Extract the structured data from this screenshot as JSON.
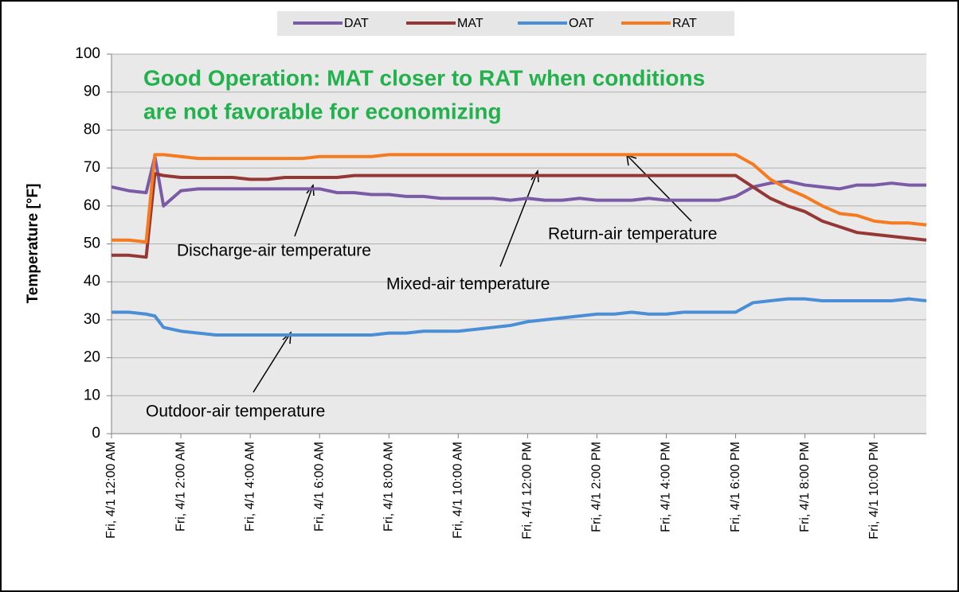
{
  "chart_data": {
    "type": "line",
    "title": [
      "Good Operation: MAT closer to RAT when conditions",
      "are not favorable for economizing"
    ],
    "y_label": "Temperature [°F]",
    "annotations": [
      "Discharge-air temperature",
      "Mixed-air temperature",
      "Return-air temperature",
      "Outdoor-air temperature"
    ],
    "x": [
      0,
      0.5,
      1,
      1.25,
      1.5,
      2,
      2.5,
      3,
      3.5,
      4,
      4.5,
      5,
      5.5,
      6,
      6.5,
      7,
      7.5,
      8,
      8.5,
      9,
      9.5,
      10,
      10.5,
      11,
      11.5,
      12,
      12.5,
      13,
      13.5,
      14,
      14.5,
      15,
      15.5,
      16,
      16.5,
      17,
      17.5,
      18,
      18.5,
      19,
      19.5,
      20,
      20.5,
      21,
      21.5,
      22,
      22.5,
      23,
      23.5
    ],
    "xlim": [
      0,
      23.5
    ],
    "xticks": [
      {
        "value": 0,
        "label": "Fri, 4/1 12:00 AM"
      },
      {
        "value": 2,
        "label": "Fri, 4/1 2:00 AM"
      },
      {
        "value": 4,
        "label": "Fri, 4/1 4:00 AM"
      },
      {
        "value": 6,
        "label": "Fri, 4/1 6:00 AM"
      },
      {
        "value": 8,
        "label": "Fri, 4/1 8:00 AM"
      },
      {
        "value": 10,
        "label": "Fri, 4/1 10:00 AM"
      },
      {
        "value": 12,
        "label": "Fri, 4/1 12:00 PM"
      },
      {
        "value": 14,
        "label": "Fri, 4/1 2:00 PM"
      },
      {
        "value": 16,
        "label": "Fri, 4/1 4:00 PM"
      },
      {
        "value": 18,
        "label": "Fri, 4/1 6:00 PM"
      },
      {
        "value": 20,
        "label": "Fri, 4/1 8:00 PM"
      },
      {
        "value": 22,
        "label": "Fri, 4/1 10:00 PM"
      }
    ],
    "ylim": [
      0,
      100
    ],
    "yticks": [
      0,
      10,
      20,
      30,
      40,
      50,
      60,
      70,
      80,
      90,
      100
    ],
    "grid": true,
    "legend": "top",
    "series": [
      {
        "name": "DAT",
        "color": "#7b5aa6",
        "values": [
          65,
          64,
          63.5,
          73,
          60,
          64,
          64.5,
          64.5,
          64.5,
          64.5,
          64.5,
          64.5,
          64.5,
          64.5,
          63.5,
          63.5,
          63,
          63,
          62.5,
          62.5,
          62,
          62,
          62,
          62,
          61.5,
          62,
          61.5,
          61.5,
          62,
          61.5,
          61.5,
          61.5,
          62,
          61.5,
          61.5,
          61.5,
          61.5,
          62.5,
          65,
          66,
          66.5,
          65.5,
          65,
          64.5,
          65.5,
          65.5,
          66,
          65.5,
          65.5
        ]
      },
      {
        "name": "MAT",
        "color": "#953735",
        "values": [
          47,
          47,
          46.5,
          68.5,
          68,
          67.5,
          67.5,
          67.5,
          67.5,
          67,
          67,
          67.5,
          67.5,
          67.5,
          67.5,
          68,
          68,
          68,
          68,
          68,
          68,
          68,
          68,
          68,
          68,
          68,
          68,
          68,
          68,
          68,
          68,
          68,
          68,
          68,
          68,
          68,
          68,
          68,
          65,
          62,
          60,
          58.5,
          56,
          54.5,
          53,
          52.5,
          52,
          51.5,
          51
        ]
      },
      {
        "name": "OAT",
        "color": "#4a8ed6",
        "values": [
          32,
          32,
          31.5,
          31,
          28,
          27,
          26.5,
          26,
          26,
          26,
          26,
          26,
          26,
          26,
          26,
          26,
          26,
          26.5,
          26.5,
          27,
          27,
          27,
          27.5,
          28,
          28.5,
          29.5,
          30,
          30.5,
          31,
          31.5,
          31.5,
          32,
          31.5,
          31.5,
          32,
          32,
          32,
          32,
          34.5,
          35,
          35.5,
          35.5,
          35,
          35,
          35,
          35,
          35,
          35.5,
          35
        ]
      },
      {
        "name": "RAT",
        "color": "#f47b20",
        "values": [
          51,
          51,
          50.5,
          73.5,
          73.5,
          73,
          72.5,
          72.5,
          72.5,
          72.5,
          72.5,
          72.5,
          72.5,
          73,
          73,
          73,
          73,
          73.5,
          73.5,
          73.5,
          73.5,
          73.5,
          73.5,
          73.5,
          73.5,
          73.5,
          73.5,
          73.5,
          73.5,
          73.5,
          73.5,
          73.5,
          73.5,
          73.5,
          73.5,
          73.5,
          73.5,
          73.5,
          71,
          67,
          64.5,
          62.5,
          60,
          58,
          57.5,
          56,
          55.5,
          55.5,
          55
        ]
      }
    ]
  }
}
